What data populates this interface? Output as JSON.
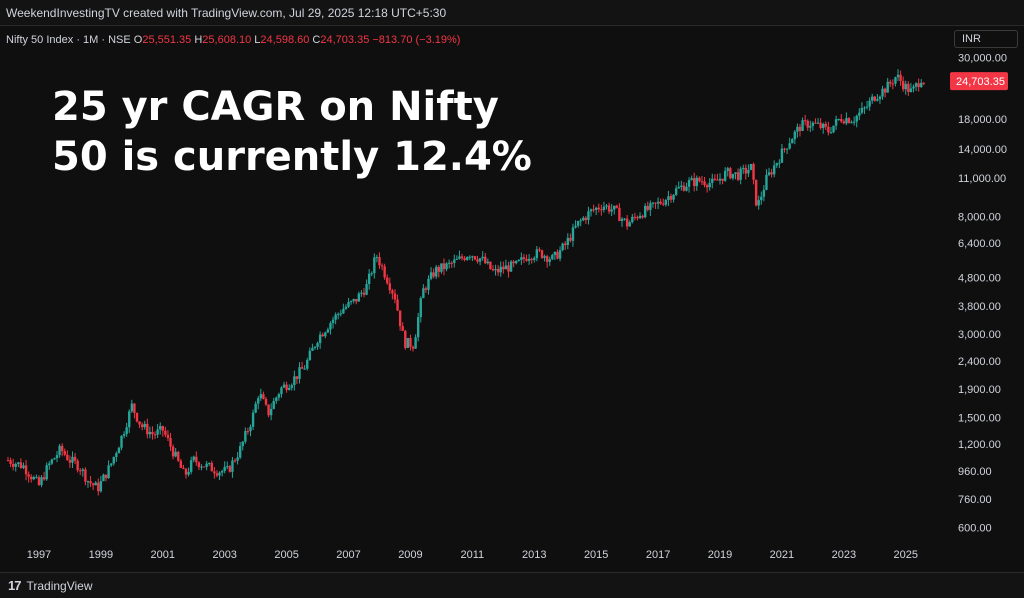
{
  "header": {
    "attribution": "WeekendInvestingTV created with TradingView.com, Jul 29, 2025 12:18 UTC+5:30"
  },
  "legend": {
    "symbol": "Nifty 50 Index · 1M · NSE",
    "open_label": "O",
    "open_value": "25,551.35",
    "high_label": "H",
    "high_value": "25,608.10",
    "low_label": "L",
    "low_value": "24,598.60",
    "close_label": "C",
    "close_value": "24,703.35",
    "change": "−813.70 (−3.19%)"
  },
  "currency": "INR",
  "annotation": {
    "line1": "25 yr CAGR on Nifty",
    "line2": "50 is currently 12.4%"
  },
  "footer": {
    "logo": "17",
    "brand": "TradingView"
  },
  "colors": {
    "up": "#26a69a",
    "down": "#f23645",
    "price_tag": "#f23645"
  },
  "chart_data": {
    "type": "candlestick",
    "y_scale": "log",
    "ylim": [
      540,
      32000
    ],
    "y_ticks": [
      "30,000.00",
      "18,000.00",
      "14,000.00",
      "11,000.00",
      "8,000.00",
      "6,400.00",
      "4,800.00",
      "3,800.00",
      "3,000.00",
      "2,400.00",
      "1,900.00",
      "1,500.00",
      "1,200.00",
      "960.00",
      "760.00",
      "600.00"
    ],
    "y_tick_values": [
      30000,
      18000,
      14000,
      11000,
      8000,
      6400,
      4800,
      3800,
      3000,
      2400,
      1900,
      1500,
      1200,
      960,
      760,
      600
    ],
    "x_ticks": [
      "1997",
      "1999",
      "2001",
      "2003",
      "2005",
      "2007",
      "2009",
      "2011",
      "2013",
      "2015",
      "2017",
      "2019",
      "2021",
      "2023",
      "2025"
    ],
    "x_range": [
      1996.0,
      2026.3
    ],
    "last_price_label": "24,703.35",
    "last_price": 24703.35,
    "series": [
      {
        "x": 1996.0,
        "y": 1050
      },
      {
        "x": 1996.5,
        "y": 1000
      },
      {
        "x": 1997.0,
        "y": 850
      },
      {
        "x": 1997.3,
        "y": 1000
      },
      {
        "x": 1997.7,
        "y": 1150
      },
      {
        "x": 1998.0,
        "y": 1050
      },
      {
        "x": 1998.3,
        "y": 1000
      },
      {
        "x": 1998.6,
        "y": 880
      },
      {
        "x": 1998.9,
        "y": 830
      },
      {
        "x": 1999.3,
        "y": 1000
      },
      {
        "x": 1999.7,
        "y": 1300
      },
      {
        "x": 2000.0,
        "y": 1650
      },
      {
        "x": 2000.3,
        "y": 1400
      },
      {
        "x": 2000.7,
        "y": 1300
      },
      {
        "x": 2001.0,
        "y": 1350
      },
      {
        "x": 2001.3,
        "y": 1150
      },
      {
        "x": 2001.7,
        "y": 920
      },
      {
        "x": 2002.0,
        "y": 1050
      },
      {
        "x": 2002.4,
        "y": 1000
      },
      {
        "x": 2002.8,
        "y": 960
      },
      {
        "x": 2003.1,
        "y": 960
      },
      {
        "x": 2003.5,
        "y": 1150
      },
      {
        "x": 2003.9,
        "y": 1500
      },
      {
        "x": 2004.1,
        "y": 1850
      },
      {
        "x": 2004.4,
        "y": 1550
      },
      {
        "x": 2004.8,
        "y": 1900
      },
      {
        "x": 2005.2,
        "y": 2050
      },
      {
        "x": 2005.6,
        "y": 2300
      },
      {
        "x": 2006.0,
        "y": 2900
      },
      {
        "x": 2006.4,
        "y": 3300
      },
      {
        "x": 2006.8,
        "y": 3700
      },
      {
        "x": 2007.2,
        "y": 3950
      },
      {
        "x": 2007.6,
        "y": 4500
      },
      {
        "x": 2007.9,
        "y": 5800
      },
      {
        "x": 2008.2,
        "y": 4900
      },
      {
        "x": 2008.5,
        "y": 4100
      },
      {
        "x": 2008.8,
        "y": 2800
      },
      {
        "x": 2009.1,
        "y": 2750
      },
      {
        "x": 2009.4,
        "y": 4300
      },
      {
        "x": 2009.8,
        "y": 5100
      },
      {
        "x": 2010.2,
        "y": 5300
      },
      {
        "x": 2010.6,
        "y": 5600
      },
      {
        "x": 2010.9,
        "y": 5900
      },
      {
        "x": 2011.3,
        "y": 5600
      },
      {
        "x": 2011.7,
        "y": 5000
      },
      {
        "x": 2012.0,
        "y": 5200
      },
      {
        "x": 2012.4,
        "y": 5300
      },
      {
        "x": 2012.8,
        "y": 5800
      },
      {
        "x": 2013.2,
        "y": 5900
      },
      {
        "x": 2013.6,
        "y": 5600
      },
      {
        "x": 2014.0,
        "y": 6300
      },
      {
        "x": 2014.4,
        "y": 7500
      },
      {
        "x": 2014.8,
        "y": 8300
      },
      {
        "x": 2015.2,
        "y": 8800
      },
      {
        "x": 2015.6,
        "y": 8400
      },
      {
        "x": 2016.0,
        "y": 7500
      },
      {
        "x": 2016.4,
        "y": 8200
      },
      {
        "x": 2016.8,
        "y": 8600
      },
      {
        "x": 2017.2,
        "y": 9200
      },
      {
        "x": 2017.6,
        "y": 10000
      },
      {
        "x": 2018.0,
        "y": 10600
      },
      {
        "x": 2018.4,
        "y": 10800
      },
      {
        "x": 2018.8,
        "y": 10500
      },
      {
        "x": 2019.2,
        "y": 11500
      },
      {
        "x": 2019.6,
        "y": 11300
      },
      {
        "x": 2020.0,
        "y": 12000
      },
      {
        "x": 2020.2,
        "y": 8600
      },
      {
        "x": 2020.5,
        "y": 10900
      },
      {
        "x": 2020.9,
        "y": 13000
      },
      {
        "x": 2021.2,
        "y": 14800
      },
      {
        "x": 2021.6,
        "y": 17000
      },
      {
        "x": 2021.9,
        "y": 17400
      },
      {
        "x": 2022.2,
        "y": 17000
      },
      {
        "x": 2022.5,
        "y": 16300
      },
      {
        "x": 2022.9,
        "y": 18200
      },
      {
        "x": 2023.3,
        "y": 18000
      },
      {
        "x": 2023.7,
        "y": 19700
      },
      {
        "x": 2024.0,
        "y": 21800
      },
      {
        "x": 2024.4,
        "y": 23500
      },
      {
        "x": 2024.7,
        "y": 25800
      },
      {
        "x": 2025.0,
        "y": 23500
      },
      {
        "x": 2025.2,
        "y": 22500
      },
      {
        "x": 2025.5,
        "y": 25400
      },
      {
        "x": 2025.6,
        "y": 24703
      }
    ]
  }
}
